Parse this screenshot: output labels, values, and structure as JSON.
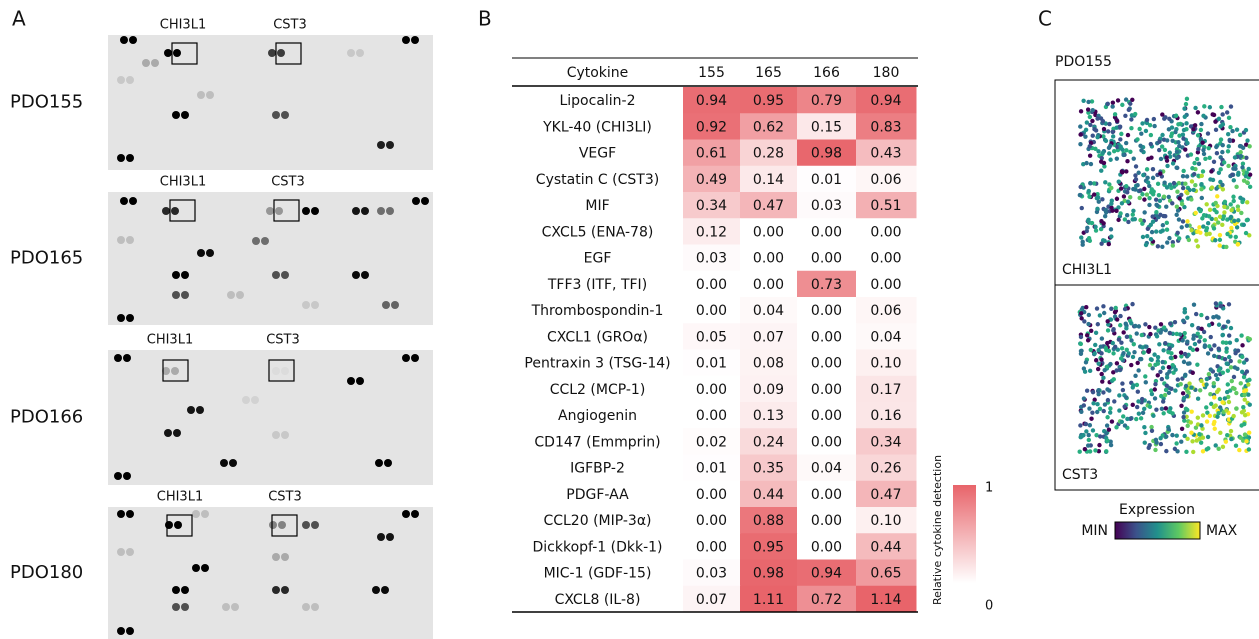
{
  "panel_a": {
    "letter": "A",
    "blots": [
      {
        "sample": "PDO155",
        "box_labels": [
          "CHI3L1",
          "CST3"
        ]
      },
      {
        "sample": "PDO165",
        "box_labels": [
          "CHI3L1",
          "CST3"
        ]
      },
      {
        "sample": "PDO166",
        "box_labels": [
          "CHI3L1",
          "CST3"
        ]
      },
      {
        "sample": "PDO180",
        "box_labels": [
          "CHI3L1",
          "CST3"
        ]
      }
    ]
  },
  "panel_b": {
    "letter": "B",
    "table": {
      "header": [
        "Cytokine",
        "155",
        "165",
        "166",
        "180"
      ],
      "rows": [
        [
          "Lipocalin-2",
          "0.94",
          "0.95",
          "0.79",
          "0.94"
        ],
        [
          "YKL-40 (CHI3LI)",
          "0.92",
          "0.62",
          "0.15",
          "0.83"
        ],
        [
          "VEGF",
          "0.61",
          "0.28",
          "0.98",
          "0.43"
        ],
        [
          "Cystatin C (CST3)",
          "0.49",
          "0.14",
          "0.01",
          "0.06"
        ],
        [
          "MIF",
          "0.34",
          "0.47",
          "0.03",
          "0.51"
        ],
        [
          "CXCL5 (ENA-78)",
          "0.12",
          "0.00",
          "0.00",
          "0.00"
        ],
        [
          "EGF",
          "0.03",
          "0.00",
          "0.00",
          "0.00"
        ],
        [
          "TFF3 (ITF, TFI)",
          "0.00",
          "0.00",
          "0.73",
          "0.00"
        ],
        [
          "Thrombospondin-1",
          "0.00",
          "0.04",
          "0.00",
          "0.06"
        ],
        [
          "CXCL1 (GROα)",
          "0.05",
          "0.07",
          "0.00",
          "0.04"
        ],
        [
          "Pentraxin 3 (TSG-14)",
          "0.01",
          "0.08",
          "0.00",
          "0.10"
        ],
        [
          "CCL2 (MCP-1)",
          "0.00",
          "0.09",
          "0.00",
          "0.17"
        ],
        [
          "Angiogenin",
          "0.00",
          "0.13",
          "0.00",
          "0.16"
        ],
        [
          "CD147 (Emmprin)",
          "0.02",
          "0.24",
          "0.00",
          "0.34"
        ],
        [
          "IGFBP-2",
          "0.01",
          "0.35",
          "0.04",
          "0.26"
        ],
        [
          "PDGF-AA",
          "0.00",
          "0.44",
          "0.00",
          "0.47"
        ],
        [
          "CCL20 (MIP-3α)",
          "0.00",
          "0.88",
          "0.00",
          "0.10"
        ],
        [
          "Dickkopf-1 (Dkk-1)",
          "0.00",
          "0.95",
          "0.00",
          "0.44"
        ],
        [
          "MIC-1 (GDF-15)",
          "0.03",
          "0.98",
          "0.94",
          "0.65"
        ],
        [
          "CXCL8 (IL-8)",
          "0.07",
          "1.11",
          "0.72",
          "1.14"
        ]
      ]
    },
    "colorbar": {
      "label": "Relative cytokine detection",
      "max": 1,
      "min": 0
    }
  },
  "panel_c": {
    "letter": "C",
    "sample": "PDO155",
    "genes": [
      "CHI3L1",
      "CST3"
    ],
    "legend": {
      "title": "Expression",
      "min_label": "MIN",
      "max_label": "MAX"
    }
  }
}
